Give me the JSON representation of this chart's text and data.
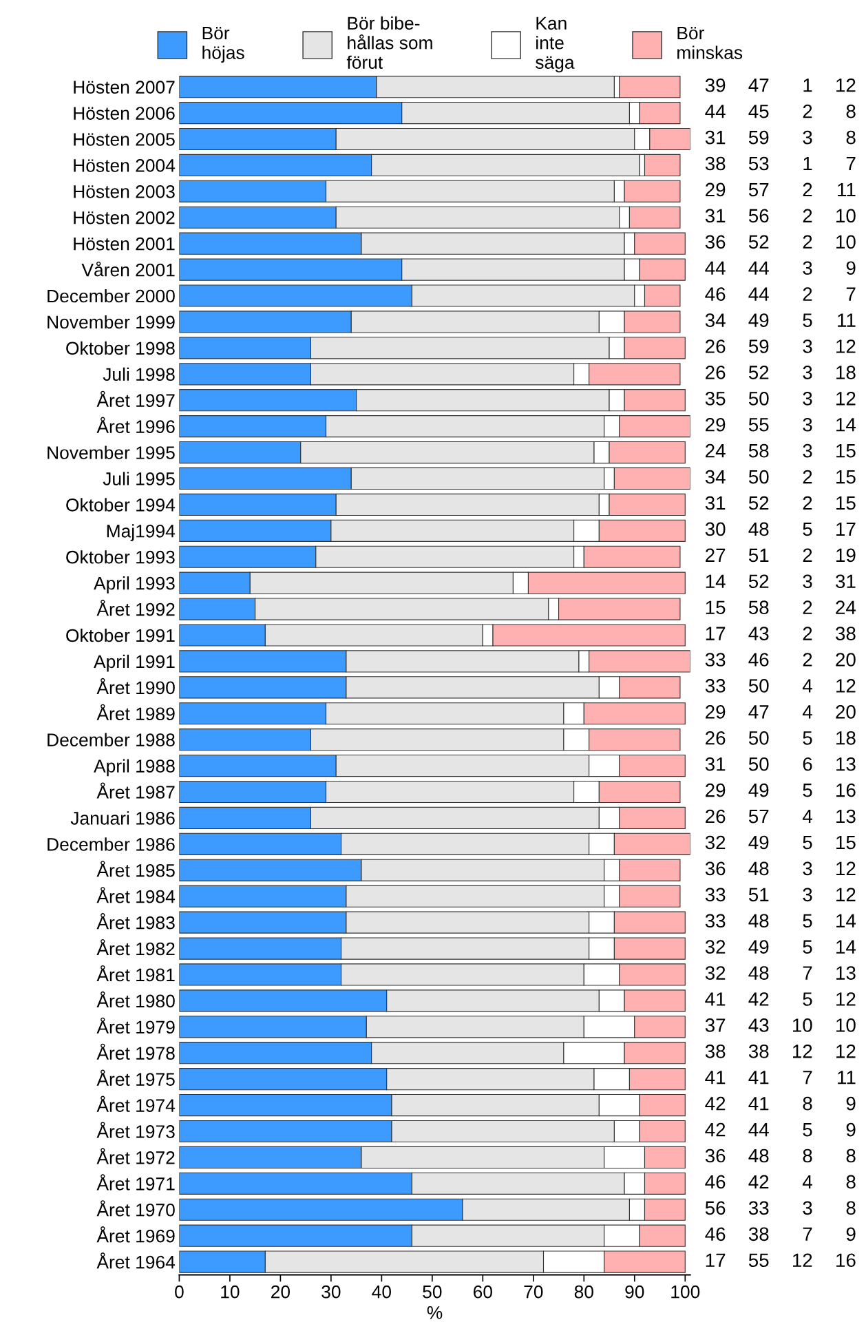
{
  "chart_data": {
    "type": "bar",
    "orientation": "horizontal",
    "stacked": true,
    "xlabel": "%",
    "xlim": [
      0,
      101
    ],
    "xticks": [
      0,
      10,
      20,
      30,
      40,
      50,
      60,
      70,
      80,
      90,
      100
    ],
    "grid": false,
    "legend": "top",
    "data_labels": true,
    "categories": [
      "Hösten 2007",
      "Hösten 2006",
      "Hösten 2005",
      "Hösten 2004",
      "Hösten 2003",
      "Hösten 2002",
      "Hösten 2001",
      "Våren 2001",
      "December 2000",
      "November 1999",
      "Oktober 1998",
      "Juli 1998",
      "Året 1997",
      "Året 1996",
      "November 1995",
      "Juli 1995",
      "Oktober 1994",
      "Maj1994",
      "Oktober 1993",
      "April 1993",
      "Året 1992",
      "Oktober 1991",
      "April 1991",
      "Året 1990",
      "Året 1989",
      "December 1988",
      "April 1988",
      "Året 1987",
      "Januari 1986",
      "December 1986",
      "Året 1985",
      "Året 1984",
      "Året 1983",
      "Året 1982",
      "Året 1981",
      "Året 1980",
      "Året 1979",
      "Året 1978",
      "Året 1975",
      "Året 1974",
      "Året 1973",
      "Året 1972",
      "Året 1971",
      "Året 1970",
      "Året 1969",
      "Året 1964"
    ],
    "series": [
      {
        "name": "Bör\nhöjas",
        "color": "#3d9bff",
        "values": [
          39,
          44,
          31,
          38,
          29,
          31,
          36,
          44,
          46,
          34,
          26,
          26,
          35,
          29,
          24,
          34,
          31,
          30,
          27,
          14,
          15,
          17,
          33,
          33,
          29,
          26,
          31,
          29,
          26,
          32,
          36,
          33,
          33,
          32,
          32,
          41,
          37,
          38,
          41,
          42,
          42,
          36,
          46,
          56,
          46,
          17
        ]
      },
      {
        "name": "Bör bibe-\nhållas som\nförut",
        "color": "#e5e5e5",
        "values": [
          47,
          45,
          59,
          53,
          57,
          56,
          52,
          44,
          44,
          49,
          59,
          52,
          50,
          55,
          58,
          50,
          52,
          48,
          51,
          52,
          58,
          43,
          46,
          50,
          47,
          50,
          50,
          49,
          57,
          49,
          48,
          51,
          48,
          49,
          48,
          42,
          43,
          38,
          41,
          41,
          44,
          48,
          42,
          33,
          38,
          55
        ]
      },
      {
        "name": "Kan\ninte\nsäga",
        "color": "#ffffff",
        "values": [
          1,
          2,
          3,
          1,
          2,
          2,
          2,
          3,
          2,
          5,
          3,
          3,
          3,
          3,
          3,
          2,
          2,
          5,
          2,
          3,
          2,
          2,
          2,
          4,
          4,
          5,
          6,
          5,
          4,
          5,
          3,
          3,
          5,
          5,
          7,
          5,
          10,
          12,
          7,
          8,
          5,
          8,
          4,
          3,
          7,
          12
        ]
      },
      {
        "name": "Bör\nminskas",
        "color": "#ffb0b0",
        "values": [
          12,
          8,
          8,
          7,
          11,
          10,
          10,
          9,
          7,
          11,
          12,
          18,
          12,
          14,
          15,
          15,
          15,
          17,
          19,
          31,
          24,
          38,
          20,
          12,
          20,
          18,
          13,
          16,
          13,
          15,
          12,
          12,
          14,
          14,
          13,
          12,
          10,
          12,
          11,
          9,
          9,
          8,
          8,
          8,
          9,
          16
        ]
      }
    ]
  }
}
